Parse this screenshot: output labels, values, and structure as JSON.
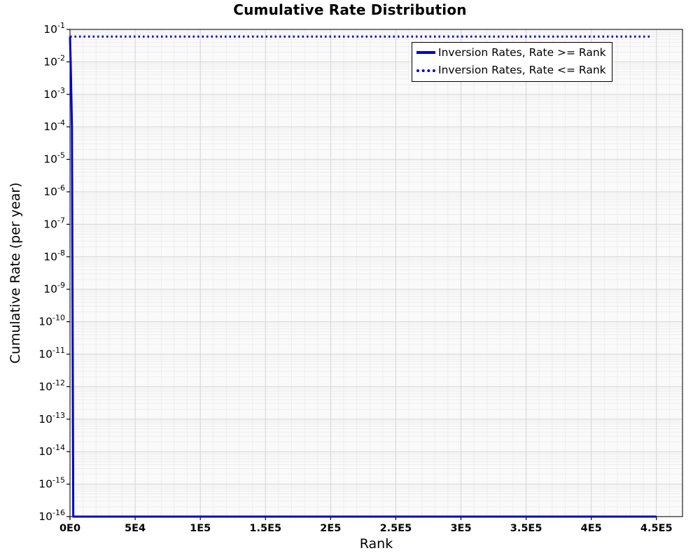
{
  "chart_data": {
    "type": "line",
    "title": "Cumulative Rate Distribution",
    "xlabel": "Rank",
    "ylabel": "Cumulative Rate (per year)",
    "x_scale": "linear",
    "y_scale": "log",
    "xlim": [
      0,
      470000
    ],
    "ylim": [
      1e-16,
      0.1
    ],
    "x_ticks": [
      {
        "value": 0,
        "label": "0E0"
      },
      {
        "value": 50000,
        "label": "5E4"
      },
      {
        "value": 100000,
        "label": "1E5"
      },
      {
        "value": 150000,
        "label": "1.5E5"
      },
      {
        "value": 200000,
        "label": "2E5"
      },
      {
        "value": 250000,
        "label": "2.5E5"
      },
      {
        "value": 300000,
        "label": "3E5"
      },
      {
        "value": 350000,
        "label": "3.5E5"
      },
      {
        "value": 400000,
        "label": "4E5"
      },
      {
        "value": 450000,
        "label": "4.5E5"
      }
    ],
    "y_tick_exponents": [
      -1,
      -2,
      -3,
      -4,
      -5,
      -6,
      -7,
      -8,
      -9,
      -10,
      -11,
      -12,
      -13,
      -14,
      -15,
      -16
    ],
    "grid": true,
    "legend_position": "top-right",
    "colors": {
      "line": "#0000d0",
      "grid_major": "#d4d4d4",
      "grid_minor": "#ebebeb",
      "frame": "#222222"
    },
    "series": [
      {
        "name": "Inversion Rates, Rate >= Rank",
        "style": "solid",
        "color": "#0000d0",
        "points": [
          [
            0,
            0.06
          ],
          [
            500,
            0.01
          ],
          [
            1500,
            0.0001
          ],
          [
            2500,
            1e-16
          ],
          [
            450000,
            1e-16
          ]
        ]
      },
      {
        "name": "Inversion Rates, Rate <= Rank",
        "style": "dotted",
        "color": "#0000d0",
        "points": [
          [
            0,
            0.06
          ],
          [
            445000,
            0.06
          ]
        ]
      }
    ]
  }
}
